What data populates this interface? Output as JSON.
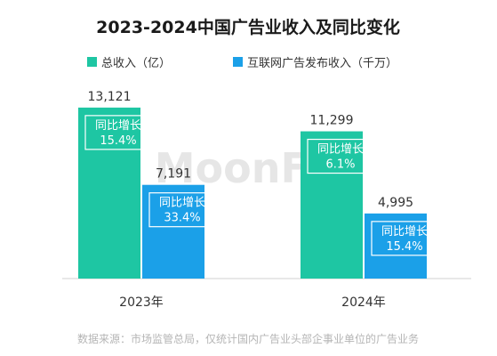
{
  "chart_data": {
    "type": "bar",
    "title": "2023-2024中国广告业收入及同比变化",
    "categories": [
      "2023年",
      "2024年"
    ],
    "series": [
      {
        "name": "总收入（亿）",
        "values": [
          13121,
          11299
        ],
        "value_labels": [
          "13,121",
          "11,299"
        ],
        "growth_label": "同比增长",
        "growth": [
          "15.4%",
          "6.1%"
        ],
        "color": "#1ec6a3"
      },
      {
        "name": "互联网广告发布收入（千万）",
        "values": [
          7191,
          4995
        ],
        "value_labels": [
          "7,191",
          "4,995"
        ],
        "growth_label": "同比增长",
        "growth": [
          "33.4%",
          "15.4%"
        ],
        "color": "#1ba0e8"
      }
    ],
    "ylim": [
      0,
      14000
    ],
    "grid": false,
    "legend_position": "top"
  },
  "watermark": "MoonFox",
  "footer": "数据来源：市场监管总局，仅统计国内广告业头部企事业单位的广告业务"
}
